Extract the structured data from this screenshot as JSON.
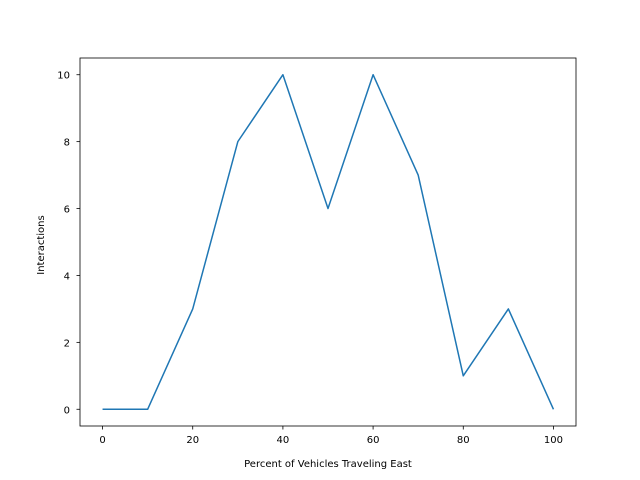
{
  "chart_data": {
    "type": "line",
    "title": "",
    "xlabel": "Percent of Vehicles Traveling East",
    "ylabel": "Interactions",
    "xlim": [
      -5,
      105
    ],
    "ylim": [
      -0.5,
      10.5
    ],
    "xticks": [
      0,
      20,
      40,
      60,
      80,
      100
    ],
    "yticks": [
      0,
      2,
      4,
      6,
      8,
      10
    ],
    "grid": false,
    "legend": "none",
    "series": [
      {
        "color": "#1f77b4",
        "x": [
          0,
          10,
          20,
          30,
          40,
          50,
          60,
          70,
          80,
          90,
          100
        ],
        "y": [
          0,
          0,
          3,
          8,
          10,
          6,
          10,
          7,
          1,
          3,
          0
        ]
      }
    ]
  }
}
